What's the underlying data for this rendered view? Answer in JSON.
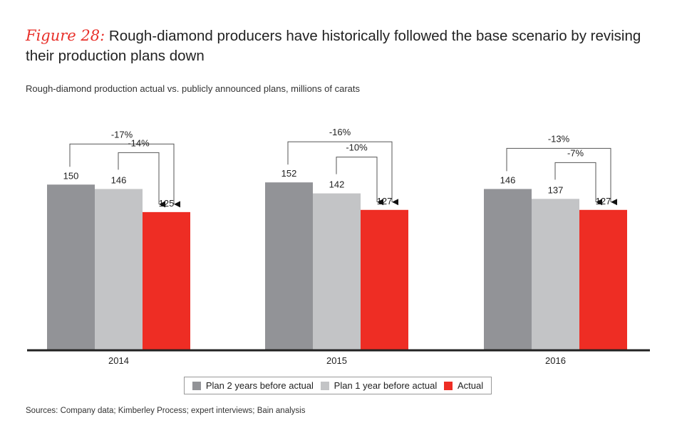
{
  "title": {
    "figure_label": "Figure 28:",
    "text": "Rough-diamond producers have historically followed the base scenario by revising their production plans down"
  },
  "subtitle": "Rough-diamond production actual vs. publicly announced plans, millions of carats",
  "source": "Sources: Company data; Kimberley Process; expert interviews; Bain analysis",
  "colors": {
    "plan2": "#929397",
    "plan1": "#c3c4c6",
    "actual": "#ee2d24",
    "axis": "#222222"
  },
  "chart_data": {
    "type": "bar",
    "categories": [
      "2014",
      "2015",
      "2016"
    ],
    "series": [
      {
        "name": "Plan 2 years before actual",
        "values": [
          150,
          152,
          146
        ]
      },
      {
        "name": "Plan 1 year before actual",
        "values": [
          146,
          142,
          137
        ]
      },
      {
        "name": "Actual",
        "values": [
          125,
          127,
          127
        ]
      }
    ],
    "annotations": [
      {
        "category": "2014",
        "plan2_change": "-17%",
        "plan1_change": "-14%"
      },
      {
        "category": "2015",
        "plan2_change": "-16%",
        "plan1_change": "-10%"
      },
      {
        "category": "2016",
        "plan2_change": "-13%",
        "plan1_change": "-7%"
      }
    ],
    "ylim": [
      0,
      200
    ],
    "grid": false,
    "legend_position": "bottom"
  }
}
